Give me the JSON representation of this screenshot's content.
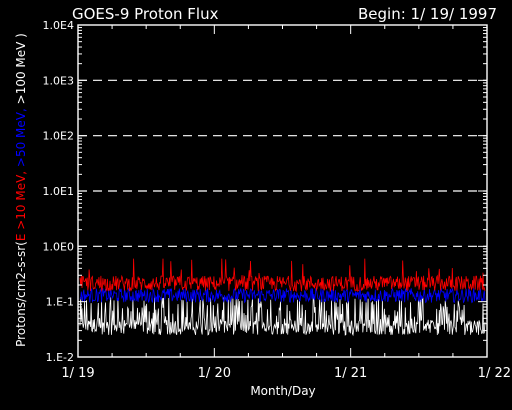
{
  "chart_data": {
    "type": "line",
    "title": "GOES-9 Proton Flux",
    "begin_label": "Begin: 1/ 19/ 1997",
    "xlabel": "Month/Day",
    "ylabel_parts": [
      {
        "text": "Protons/cm2-s-sr(",
        "color": "#ffffff"
      },
      {
        "text": "E >10 MeV,",
        "color": "#ff0000"
      },
      {
        "text": " >50 MeV,",
        "color": "#0000ff"
      },
      {
        "text": " >100 MeV )",
        "color": "#ffffff"
      }
    ],
    "y_scale": "log",
    "ylim": [
      0.01,
      10000
    ],
    "y_ticks": [
      {
        "value": 0.01,
        "label": "1.E-2"
      },
      {
        "value": 0.1,
        "label": "1.E-1"
      },
      {
        "value": 1,
        "label": "1.0E0"
      },
      {
        "value": 10,
        "label": "1.0E1"
      },
      {
        "value": 100,
        "label": "1.0E2"
      },
      {
        "value": 1000,
        "label": "1.0E3"
      },
      {
        "value": 10000,
        "label": "1.0E4"
      }
    ],
    "grid": "dashed horizontal at decades",
    "xlim": [
      "1997-01-19",
      "1997-01-22"
    ],
    "x_ticks": [
      {
        "value": "1997-01-19",
        "label": "1/ 19"
      },
      {
        "value": "1997-01-20",
        "label": "1/ 20"
      },
      {
        "value": "1997-01-21",
        "label": "1/ 21"
      },
      {
        "value": "1997-01-22",
        "label": "1/ 22"
      }
    ],
    "series": [
      {
        "name": "E >10 MeV",
        "color": "#ff0000",
        "typical": 0.2,
        "range": [
          0.13,
          0.6
        ]
      },
      {
        "name": ">50 MeV",
        "color": "#0000ff",
        "typical": 0.13,
        "range": [
          0.09,
          0.2
        ]
      },
      {
        "name": ">100 MeV",
        "color": "#ffffff",
        "typical": 0.05,
        "range": [
          0.025,
          0.12
        ]
      }
    ]
  }
}
